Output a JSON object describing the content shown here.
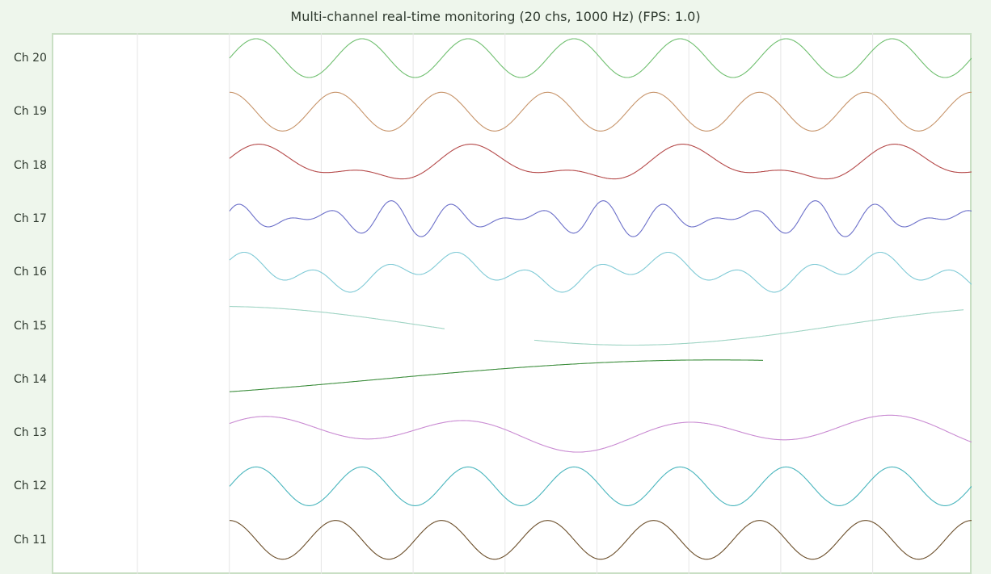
{
  "window": {
    "title": "Multi-channel real-time monitoring (20 chs, 1000 Hz) (FPS: 1.0)"
  },
  "chart_data": {
    "type": "line",
    "title": "Multi-channel real-time monitoring (20 chs, 1000 Hz) (FPS: 1.0)",
    "grid": true,
    "x_samples_visible": 1000,
    "sample_rate_hz": 1000,
    "visible_channels": [
      "Ch 20",
      "Ch 19",
      "Ch 18",
      "Ch 17",
      "Ch 16",
      "Ch 15",
      "Ch 14",
      "Ch 13",
      "Ch 12",
      "Ch 11"
    ],
    "series": [
      {
        "name": "Ch 20",
        "color": "#6fbf6f",
        "components": [
          {
            "freq_hz": 7.0,
            "amp": 1.0,
            "phase_deg": 0
          }
        ]
      },
      {
        "name": "Ch 19",
        "color": "#c7946a",
        "components": [
          {
            "freq_hz": 7.0,
            "amp": 1.0,
            "phase_deg": 90
          }
        ]
      },
      {
        "name": "Ch 18",
        "color": "#b54a4a",
        "components": [
          {
            "freq_hz": 3.5,
            "amp": 0.7,
            "phase_deg": 30
          },
          {
            "freq_hz": 7.0,
            "amp": 0.4,
            "phase_deg": 0
          }
        ]
      },
      {
        "name": "Ch 17",
        "color": "#6b6fc9",
        "components": [
          {
            "freq_hz": 10.5,
            "amp": 0.5,
            "phase_deg": 0
          },
          {
            "freq_hz": 14.0,
            "amp": 0.45,
            "phase_deg": 60
          }
        ]
      },
      {
        "name": "Ch 16",
        "color": "#7fcad6",
        "components": [
          {
            "freq_hz": 10.5,
            "amp": 0.5,
            "phase_deg": 10
          },
          {
            "freq_hz": 3.5,
            "amp": 0.55,
            "phase_deg": 80
          }
        ]
      },
      {
        "name": "Ch 15",
        "color": "#9fd4c4",
        "components": [
          {
            "freq_hz": 0.9,
            "amp": 1.0,
            "phase_deg": 95
          }
        ],
        "visible_until_fraction": 0.99,
        "gap_fraction": [
          0.29,
          0.41
        ]
      },
      {
        "name": "Ch 14",
        "color": "#3f8f3f",
        "components": [
          {
            "freq_hz": 0.55,
            "amp": 1.0,
            "phase_deg": -40
          }
        ],
        "visible_until_fraction": 0.72
      },
      {
        "name": "Ch 13",
        "color": "#c98ad2",
        "components": [
          {
            "freq_hz": 3.5,
            "amp": 0.65,
            "phase_deg": 40
          },
          {
            "freq_hz": 1.5,
            "amp": 0.35,
            "phase_deg": 10
          }
        ]
      },
      {
        "name": "Ch 12",
        "color": "#48b5bd",
        "components": [
          {
            "freq_hz": 7.0,
            "amp": 1.0,
            "phase_deg": 0
          }
        ]
      },
      {
        "name": "Ch 11",
        "color": "#6b4e2a",
        "components": [
          {
            "freq_hz": 7.0,
            "amp": 1.0,
            "phase_deg": 90
          }
        ]
      }
    ]
  }
}
